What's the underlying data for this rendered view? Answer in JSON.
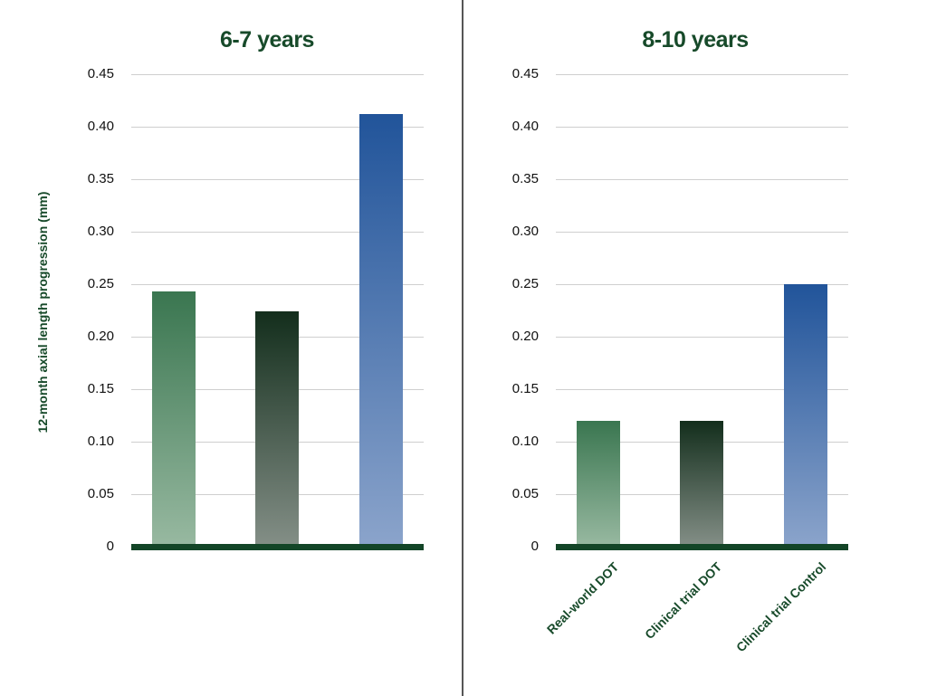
{
  "chart_data": [
    {
      "type": "bar",
      "title": "6-7 years",
      "categories": [
        "Real-world DOT",
        "Clinical trial DOT",
        "Clinical trial Control"
      ],
      "values": [
        0.243,
        0.224,
        0.412
      ],
      "xlabel": "",
      "ylabel": "12-month axial length progression (mm)",
      "ylim": [
        0,
        0.45
      ],
      "yticks": [
        "0",
        "0.05",
        "0.10",
        "0.15",
        "0.20",
        "0.25",
        "0.30",
        "0.35",
        "0.40",
        "0.45"
      ],
      "grid": true,
      "colors": [
        "#3a7650",
        "#132e1c",
        "#21549a"
      ]
    },
    {
      "type": "bar",
      "title": "8-10 years",
      "categories": [
        "Real-world DOT",
        "Clinical trial DOT",
        "Clinical trial Control"
      ],
      "values": [
        0.12,
        0.12,
        0.25
      ],
      "xlabel": "",
      "ylabel": "12-month axial length progression (mm)",
      "ylim": [
        0,
        0.45
      ],
      "yticks": [
        "0",
        "0.05",
        "0.10",
        "0.15",
        "0.20",
        "0.25",
        "0.30",
        "0.35",
        "0.40",
        "0.45"
      ],
      "grid": true,
      "colors": [
        "#3a7650",
        "#132e1c",
        "#21549a"
      ]
    }
  ],
  "ylabel": "12-month axial length progression (mm)",
  "panels": [
    {
      "title": "6-7 years"
    },
    {
      "title": "8-10 years"
    }
  ],
  "categories": [
    "Real-world DOT",
    "Clinical trial DOT",
    "Clinical trial Control"
  ],
  "ticks": [
    "0",
    "0.05",
    "0.10",
    "0.15",
    "0.20",
    "0.25",
    "0.30",
    "0.35",
    "0.40",
    "0.45"
  ]
}
